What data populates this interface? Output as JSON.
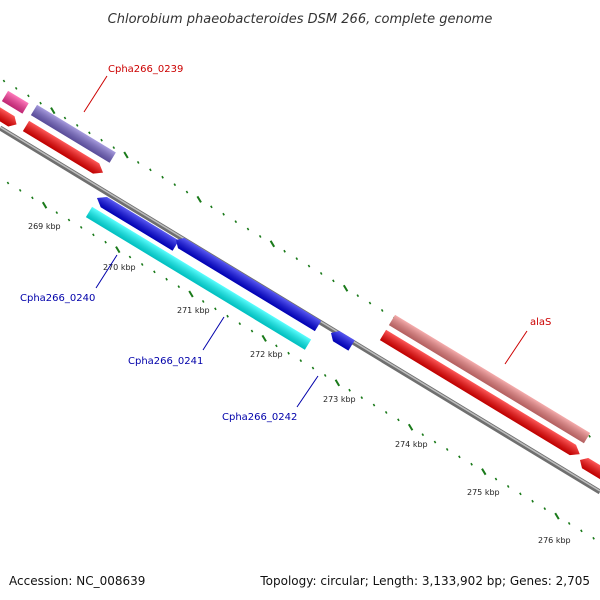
{
  "title": "Chlorobium phaeobacteroides DSM 266, complete genome",
  "footer": {
    "accession": "Accession: NC_008639",
    "summary": "Topology: circular; Length: 3,133,902 bp; Genes: 2,705"
  },
  "ticks": {
    "labels": [
      "269 kbp",
      "270 kbp",
      "271 kbp",
      "272 kbp",
      "273 kbp",
      "274 kbp",
      "275 kbp",
      "276 kbp"
    ]
  },
  "genes": [
    {
      "label": "Cpha266_0239",
      "color": "#cc0000"
    },
    {
      "label": "Cpha266_0240",
      "color": "#0000aa"
    },
    {
      "label": "Cpha266_0241",
      "color": "#0000aa"
    },
    {
      "label": "Cpha266_0242",
      "color": "#0000aa"
    },
    {
      "label": "alaS",
      "color": "#cc0000"
    }
  ],
  "colors": {
    "backbone": "#808080",
    "tick": "#1a7a1a",
    "forward_cds": "#ff0000",
    "reverse_cds": "#0000ee",
    "forward_gene": "#f08080",
    "reverse_gene": "#00ffff",
    "pseudo_gene_a": "#ff3399",
    "pseudo_gene_b": "#7766cc"
  }
}
